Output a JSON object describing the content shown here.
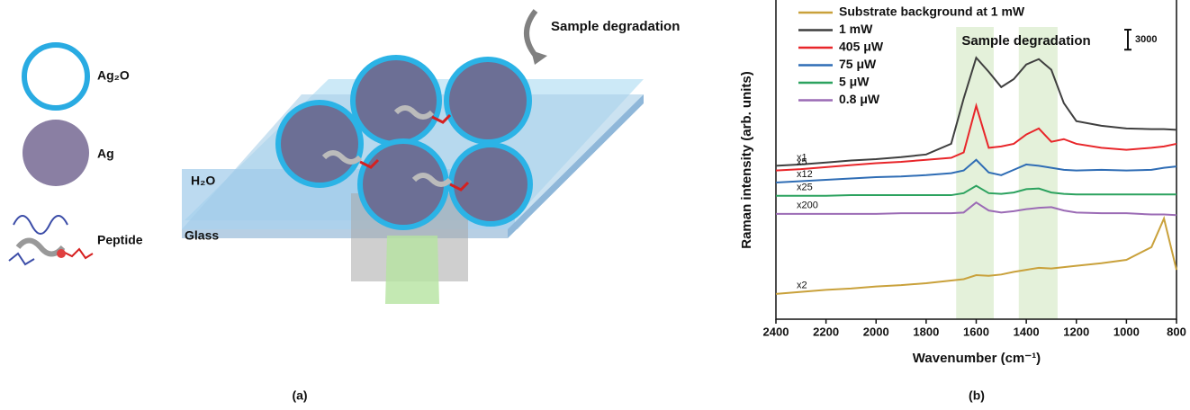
{
  "panel_a": {
    "legend": [
      "Ag₂O",
      "Ag",
      "Peptide"
    ],
    "labels": {
      "water": "H₂O",
      "glass": "Glass",
      "degradation": "Sample degradation"
    },
    "caption": "(a)"
  },
  "chart_data": {
    "type": "line",
    "caption": "(b)",
    "xlabel": "Wavenumber (cm⁻¹)",
    "ylabel": "Raman intensity (arb. units)",
    "xlim": [
      2400,
      800
    ],
    "xticks": [
      2400,
      2200,
      2000,
      1800,
      1600,
      1400,
      1200,
      1000,
      800
    ],
    "ylim": [
      0,
      48000
    ],
    "annotation": "Sample degradation",
    "bands": [
      [
        1680,
        1530
      ],
      [
        1430,
        1275
      ]
    ],
    "band_color": "#d8ebcb",
    "scale_bar": {
      "value": 3000,
      "label": "3000"
    },
    "legend": "upper left",
    "x": [
      2400,
      2300,
      2200,
      2100,
      2000,
      1900,
      1800,
      1700,
      1650,
      1600,
      1550,
      1500,
      1450,
      1400,
      1350,
      1300,
      1250,
      1200,
      1100,
      1000,
      900,
      850,
      800
    ],
    "series": [
      {
        "name": "Substrate background at 1 mW",
        "color": "#c9a13b",
        "multiplier": "x2",
        "values": [
          3800,
          4100,
          4400,
          4600,
          4900,
          5100,
          5400,
          5800,
          6000,
          6600,
          6500,
          6700,
          7100,
          7400,
          7700,
          7600,
          7800,
          8000,
          8400,
          8900,
          10800,
          15100,
          7400
        ]
      },
      {
        "name": "1 mW",
        "color": "#3f3f3f",
        "multiplier": "x1",
        "values": [
          23000,
          23200,
          23500,
          23800,
          24000,
          24300,
          24700,
          26300,
          33100,
          39200,
          37100,
          34800,
          36000,
          38200,
          39000,
          37400,
          32400,
          29700,
          29000,
          28600,
          28500,
          28500,
          28400
        ]
      },
      {
        "name": "405 μW",
        "color": "#e8262a",
        "multiplier": "x5",
        "values": [
          22300,
          22500,
          22800,
          23100,
          23400,
          23600,
          23900,
          24200,
          25000,
          32000,
          25700,
          25900,
          26300,
          27700,
          28600,
          26600,
          27000,
          26300,
          25700,
          25400,
          25700,
          25900,
          26300
        ]
      },
      {
        "name": "75 μW",
        "color": "#2f6db5",
        "multiplier": "x12",
        "values": [
          20500,
          20700,
          20900,
          21100,
          21300,
          21400,
          21600,
          21900,
          22300,
          23900,
          22000,
          21600,
          22400,
          23200,
          23000,
          22700,
          22400,
          22300,
          22400,
          22300,
          22400,
          22700,
          22900
        ]
      },
      {
        "name": "5 μW",
        "color": "#2ca25f",
        "multiplier": "x25",
        "values": [
          18500,
          18500,
          18500,
          18600,
          18600,
          18600,
          18600,
          18600,
          18900,
          20000,
          18900,
          18800,
          19000,
          19500,
          19600,
          19000,
          18800,
          18700,
          18700,
          18700,
          18700,
          18700,
          18700
        ]
      },
      {
        "name": "0.8 μW",
        "color": "#9b6bb5",
        "multiplier": "x200",
        "values": [
          15800,
          15800,
          15800,
          15800,
          15800,
          15900,
          15900,
          15900,
          16000,
          17500,
          16300,
          16000,
          16200,
          16500,
          16700,
          16800,
          16300,
          16000,
          15900,
          15900,
          15700,
          15700,
          15600
        ]
      }
    ]
  }
}
